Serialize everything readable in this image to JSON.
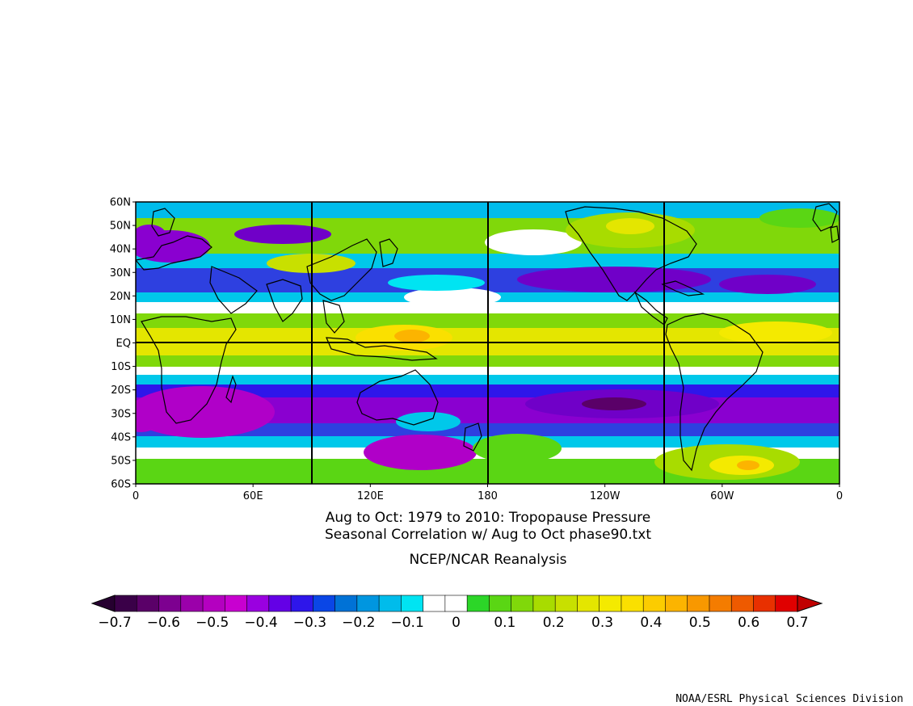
{
  "map": {
    "title_line1": "Aug to Oct: 1979 to 2010: Tropopause Pressure",
    "title_line2": "Seasonal Correlation w/ Aug to Oct phase90.txt",
    "dataset": "NCEP/NCAR Reanalysis",
    "credit": "NOAA/ESRL Physical Sciences Division",
    "lon_labels": [
      "0",
      "60E",
      "120E",
      "180",
      "120W",
      "60W",
      "0"
    ],
    "lat_labels": [
      "60N",
      "50N",
      "40N",
      "30N",
      "20N",
      "10N",
      "EQ",
      "10S",
      "20S",
      "30S",
      "40S",
      "50S",
      "60S"
    ],
    "lon_range": [
      0,
      360
    ],
    "lat_range": [
      -60,
      60
    ],
    "colorbar": {
      "tick_labels": [
        "−0.7",
        "−0.6",
        "−0.5",
        "−0.4",
        "−0.3",
        "−0.2",
        "−0.1",
        "0",
        "0.1",
        "0.2",
        "0.3",
        "0.4",
        "0.5",
        "0.6",
        "0.7"
      ],
      "colors": [
        "#3a0048",
        "#5a0068",
        "#7d0090",
        "#9b00aa",
        "#b400c0",
        "#c800d0",
        "#9a00e0",
        "#6400e6",
        "#2e16ea",
        "#0a46e6",
        "#0072d6",
        "#0096e0",
        "#00bceb",
        "#00e4f2",
        "#ffffff",
        "#ffffff",
        "#2cd628",
        "#5ad614",
        "#80d80a",
        "#a8dc00",
        "#c8e000",
        "#e4e600",
        "#f4ea00",
        "#fae000",
        "#fccc00",
        "#fcb400",
        "#f89800",
        "#f47c00",
        "#ee5a00",
        "#e83000",
        "#e00000"
      ],
      "left_arrow_color": "#260030",
      "right_arrow_color": "#c00000"
    },
    "grid_color": "#000000",
    "coast_color": "#000000"
  }
}
